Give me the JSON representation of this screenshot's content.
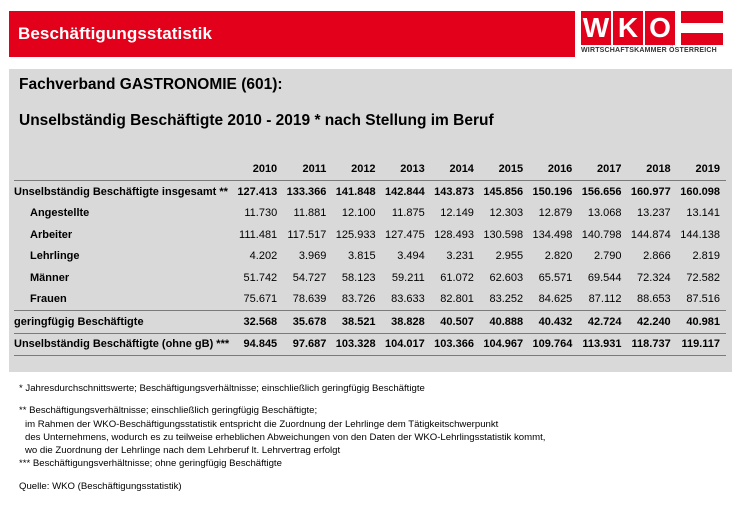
{
  "header": {
    "title": "Beschäftigungsstatistik",
    "logo_text": "WKO",
    "logo_subtitle": "WIRTSCHAFTSKAMMER ÖSTERREICH",
    "brand_color": "#e3001b"
  },
  "section": {
    "title": "Fachverband GASTRONOMIE (601):",
    "subtitle": "Unselbständig Beschäftigte 2010 - 2019 * nach Stellung im Beruf"
  },
  "table": {
    "years": [
      "2010",
      "2011",
      "2012",
      "2013",
      "2014",
      "2015",
      "2016",
      "2017",
      "2018",
      "2019"
    ],
    "rows": [
      {
        "label": "Unselbständig Beschäftigte insgesamt **",
        "values": [
          "127.413",
          "133.366",
          "141.848",
          "142.844",
          "143.873",
          "145.856",
          "150.196",
          "156.656",
          "160.977",
          "160.098"
        ]
      },
      {
        "label": "Angestellte",
        "values": [
          "11.730",
          "11.881",
          "12.100",
          "11.875",
          "12.149",
          "12.303",
          "12.879",
          "13.068",
          "13.237",
          "13.141"
        ]
      },
      {
        "label": "Arbeiter",
        "values": [
          "111.481",
          "117.517",
          "125.933",
          "127.475",
          "128.493",
          "130.598",
          "134.498",
          "140.798",
          "144.874",
          "144.138"
        ]
      },
      {
        "label": "Lehrlinge",
        "values": [
          "4.202",
          "3.969",
          "3.815",
          "3.494",
          "3.231",
          "2.955",
          "2.820",
          "2.790",
          "2.866",
          "2.819"
        ]
      },
      {
        "label": "Männer",
        "values": [
          "51.742",
          "54.727",
          "58.123",
          "59.211",
          "61.072",
          "62.603",
          "65.571",
          "69.544",
          "72.324",
          "72.582"
        ]
      },
      {
        "label": "Frauen",
        "values": [
          "75.671",
          "78.639",
          "83.726",
          "83.633",
          "82.801",
          "83.252",
          "84.625",
          "87.112",
          "88.653",
          "87.516"
        ]
      },
      {
        "label": "geringfügig Beschäftigte",
        "values": [
          "32.568",
          "35.678",
          "38.521",
          "38.828",
          "40.507",
          "40.888",
          "40.432",
          "42.724",
          "42.240",
          "40.981"
        ]
      },
      {
        "label": "Unselbständig Beschäftigte (ohne gB) ***",
        "values": [
          "94.845",
          "97.687",
          "103.328",
          "104.017",
          "103.366",
          "104.967",
          "109.764",
          "113.931",
          "118.737",
          "119.117"
        ]
      }
    ]
  },
  "notes": {
    "n1": "* Jahresdurchschnittswerte; Beschäftigungsverhältnisse; einschließlich geringfügig Beschäftigte",
    "n2_l1": "** Beschäftigungsverhältnisse; einschließlich geringfügig Beschäftigte;",
    "n2_l2": "im Rahmen der WKO-Beschäftigungsstatistik entspricht die Zuordnung der Lehrlinge dem Tätigkeitschwerpunkt",
    "n2_l3": "des Unternehmens, wodurch es zu teilweise erheblichen Abweichungen von den Daten der WKO-Lehrlingsstatistik kommt,",
    "n2_l4": "wo die Zuordnung der Lehrlinge nach dem Lehrberuf lt. Lehrvertrag erfolgt",
    "n3": "*** Beschäftigungsverhältnisse; ohne geringfügig Beschäftigte",
    "source": "Quelle: WKO (Beschäftigungsstatistik)"
  }
}
